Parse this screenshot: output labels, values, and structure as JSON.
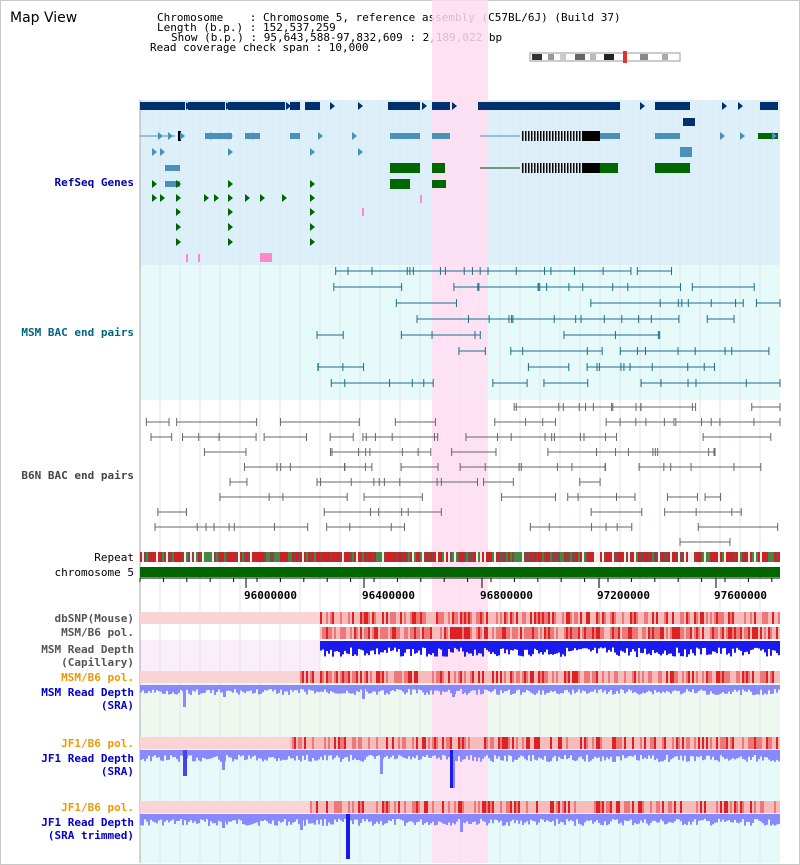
{
  "title": "Map View",
  "info": {
    "chromosome_line": "Chromosome    : Chromosome 5, reference assembly (C57BL/6J) (Build 37)",
    "length_line": "Length (b.p.) : 152,537,259",
    "show_line": "Show (b.p.) : 95,643,588-97,832,609 : 2,189,022 bp",
    "coverage_line": "Read coverage check span : 10,000"
  },
  "tracks": {
    "refseq": {
      "label": "RefSeq Genes",
      "color": "#0000aa"
    },
    "msm_bac": {
      "label": "MSM BAC end pairs",
      "color": "#006680"
    },
    "b6n_bac": {
      "label": "B6N BAC end pairs",
      "color": "#444444"
    },
    "repeat": {
      "label": "Repeat"
    },
    "chromosome": {
      "label": "chromosome 5"
    },
    "dbsnp": {
      "label": "dbSNP(Mouse)"
    },
    "msm_b6_pol_1": {
      "label": "MSM/B6 pol."
    },
    "msm_depth_cap": {
      "label": "MSM Read Depth\n(Capillary)"
    },
    "msm_b6_pol_2": {
      "label": "MSM/B6 pol.",
      "color": "#ee9900"
    },
    "msm_depth_sra": {
      "label": "MSM Read Depth\n(SRA)",
      "color": "#0000cc"
    },
    "jf1_b6_pol_1": {
      "label": "JF1/B6 pol.",
      "color": "#ee9900"
    },
    "jf1_depth_sra": {
      "label": "JF1 Read Depth\n(SRA)",
      "color": "#0000cc"
    },
    "jf1_b6_pol_2": {
      "label": "JF1/B6 pol.",
      "color": "#ee9900"
    },
    "jf1_depth_trim": {
      "label": "JF1 Read Depth\n(SRA trimmed)",
      "color": "#0000cc"
    }
  },
  "axis": {
    "ticks": [
      "96000000",
      "96400000",
      "96800000",
      "97200000",
      "97600000"
    ]
  },
  "colors": {
    "highlight": "#ffddf0",
    "refseq_bg": "#ddf0fa",
    "msm_bg": "#e6fafa",
    "gene_navy": "#003070",
    "gene_steel": "#4a90b8",
    "gene_green": "#006600",
    "depth_blue": "#1a1aee",
    "depth_light": "#8888ff"
  }
}
